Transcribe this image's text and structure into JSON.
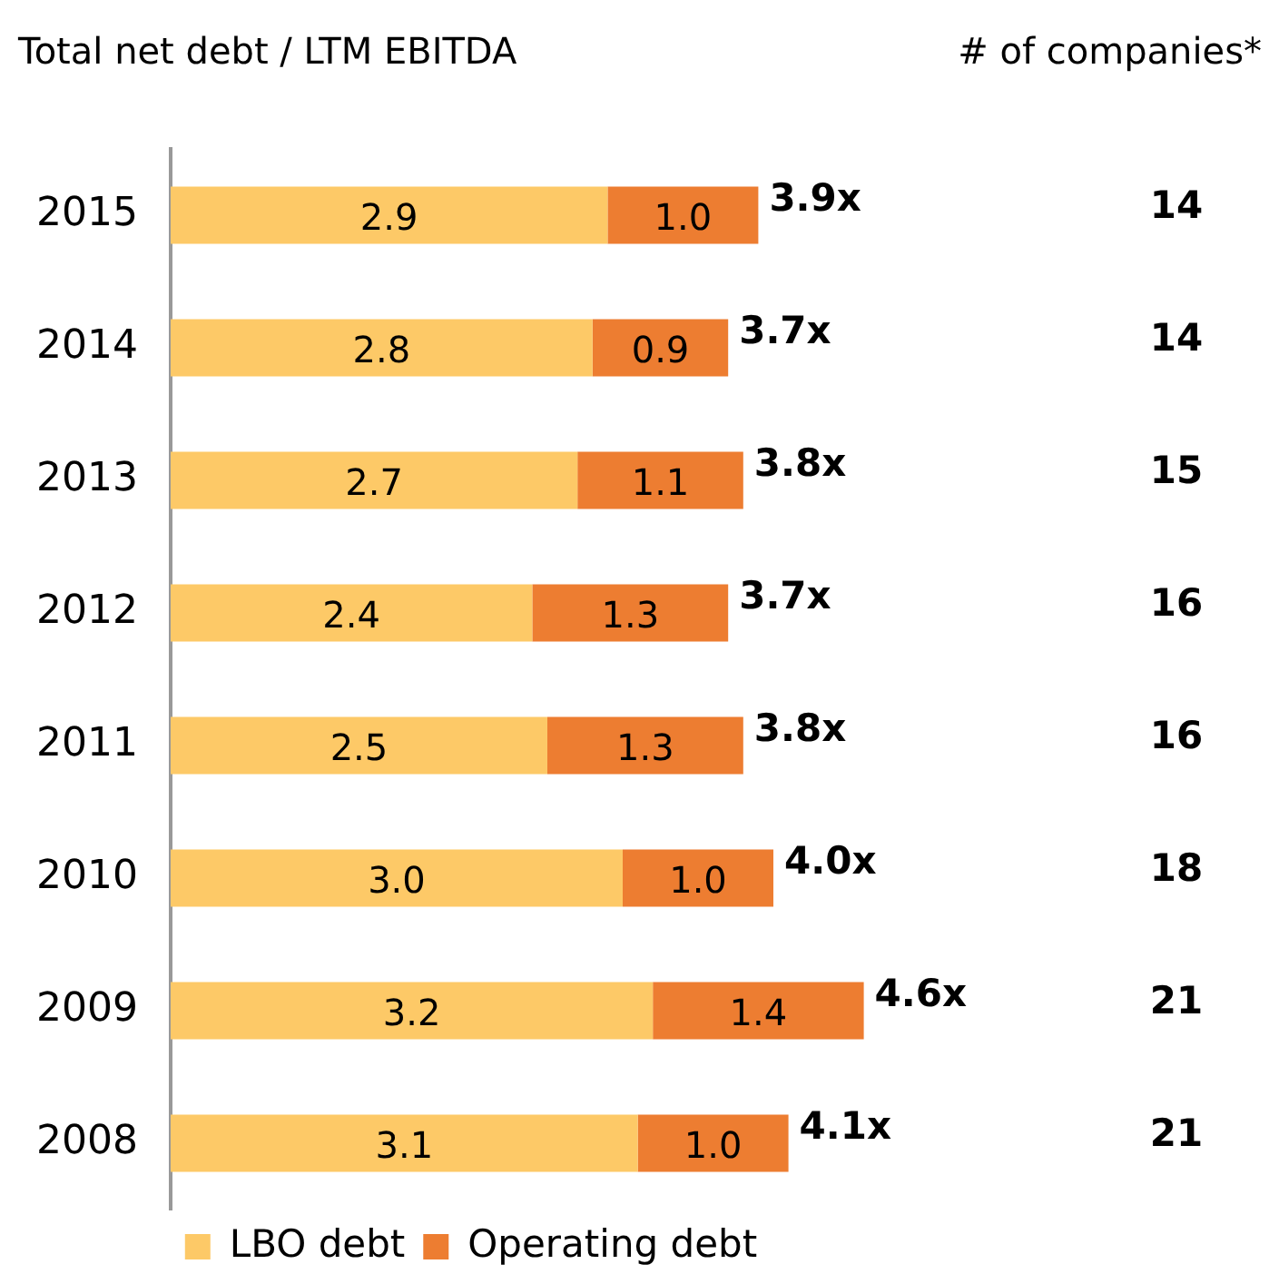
{
  "chart_data": {
    "type": "bar",
    "orientation": "horizontal",
    "stacked": true,
    "title": "Total net debt / LTM EBITDA",
    "categories": [
      "2015",
      "2014",
      "2013",
      "2012",
      "2011",
      "2010",
      "2009",
      "2008"
    ],
    "series": [
      {
        "name": "LBO debt",
        "color": "#fdc967",
        "values": [
          2.9,
          2.8,
          2.7,
          2.4,
          2.5,
          3.0,
          3.2,
          3.1
        ],
        "value_labels": [
          "2.9",
          "2.8",
          "2.7",
          "2.4",
          "2.5",
          "3.0",
          "3.2",
          "3.1"
        ]
      },
      {
        "name": "Operating debt",
        "color": "#ed7d31",
        "values": [
          1.0,
          0.9,
          1.1,
          1.3,
          1.3,
          1.0,
          1.4,
          1.0
        ],
        "value_labels": [
          "1.0",
          "0.9",
          "1.1",
          "1.3",
          "1.3",
          "1.0",
          "1.4",
          "1.0"
        ]
      }
    ],
    "totals": [
      "3.9x",
      "3.7x",
      "3.8x",
      "3.7x",
      "3.8x",
      "4.0x",
      "4.6x",
      "4.1x"
    ],
    "annotations": [
      "# of companies*",
      "14",
      "14",
      "15",
      "16",
      "16",
      "18",
      "21",
      "21"
    ],
    "legend": "bottom",
    "grid": false
  }
}
